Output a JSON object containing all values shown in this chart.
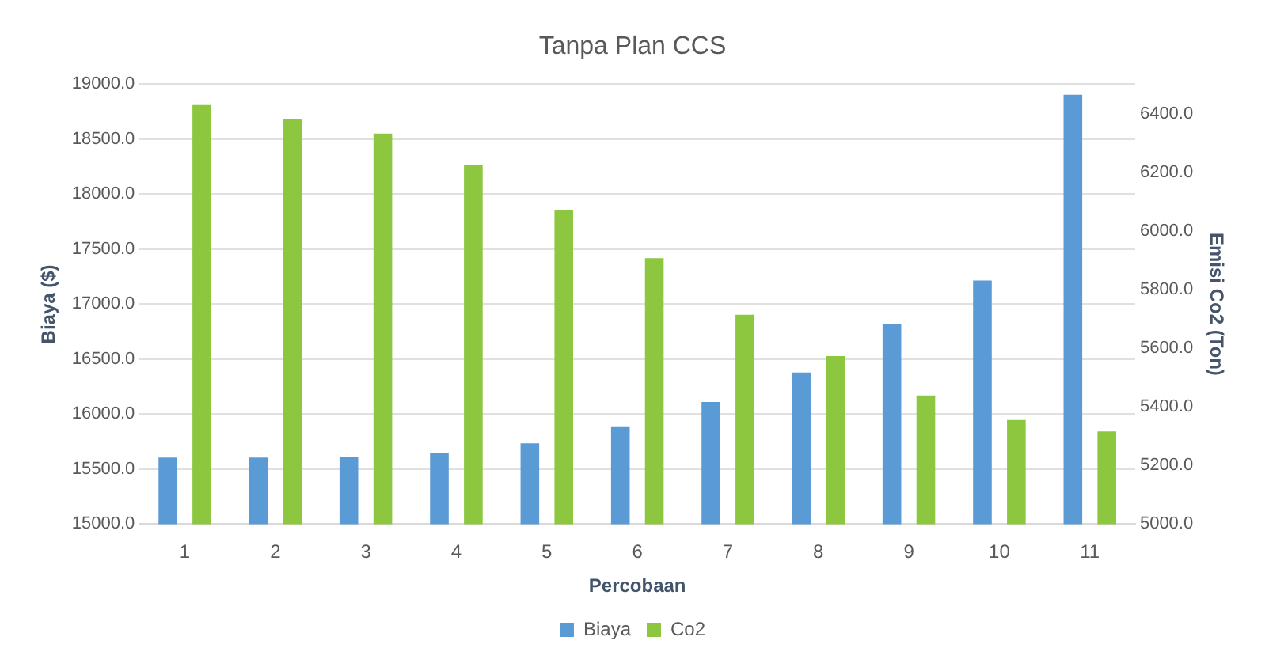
{
  "chart_data": {
    "type": "bar",
    "title": "Tanpa Plan CCS",
    "xlabel": "Percobaan",
    "ylabel": "Biaya ($)",
    "y2label": "Emisi Co2 (Ton)",
    "categories": [
      "1",
      "2",
      "3",
      "4",
      "5",
      "6",
      "7",
      "8",
      "9",
      "10",
      "11"
    ],
    "series": [
      {
        "name": "Biaya",
        "color": "#5b9bd5",
        "values": [
          15605,
          15605,
          15615,
          15648,
          15734,
          15882,
          16111,
          16378,
          16821,
          17216,
          18904
        ]
      },
      {
        "name": "Co2",
        "color": "#8dc63f",
        "axis": "y2",
        "values": [
          6429,
          6382,
          6332,
          6225,
          6070,
          5907,
          5714,
          5573,
          5439,
          5355,
          5316
        ]
      }
    ],
    "ylim": [
      15000,
      19000
    ],
    "yticks": [
      {
        "value": 15000,
        "label": "15000.0"
      },
      {
        "value": 15500,
        "label": "15500.0"
      },
      {
        "value": 16000,
        "label": "16000.0"
      },
      {
        "value": 16500,
        "label": "16500.0"
      },
      {
        "value": 17000,
        "label": "17000.0"
      },
      {
        "value": 17500,
        "label": "17500.0"
      },
      {
        "value": 18000,
        "label": "18000.0"
      },
      {
        "value": 18500,
        "label": "18500.0"
      },
      {
        "value": 19000,
        "label": "19000.0"
      }
    ],
    "y2lim": [
      5000,
      6500
    ],
    "y2ticks": [
      {
        "value": 5000,
        "label": "5000.0"
      },
      {
        "value": 5200,
        "label": "5200.0"
      },
      {
        "value": 5400,
        "label": "5400.0"
      },
      {
        "value": 5600,
        "label": "5600.0"
      },
      {
        "value": 5800,
        "label": "5800.0"
      },
      {
        "value": 6000,
        "label": "6000.0"
      },
      {
        "value": 6200,
        "label": "6200.0"
      },
      {
        "value": 6400,
        "label": "6400.0"
      }
    ],
    "grid": "y",
    "legend": "bottom"
  }
}
